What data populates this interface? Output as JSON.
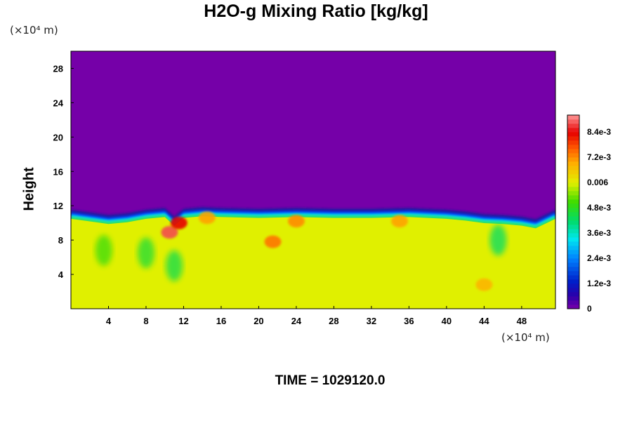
{
  "chart_data": {
    "type": "heatmap",
    "title": "H2O-g Mixing Ratio [kg/kg]",
    "xlabel": "",
    "ylabel": "Height",
    "x_unit": "(×10⁴ m)",
    "y_unit": "(×10⁴ m)",
    "xlim": [
      0,
      51.6
    ],
    "ylim": [
      0,
      30
    ],
    "x_ticks": [
      4,
      8,
      12,
      16,
      20,
      24,
      28,
      32,
      36,
      40,
      44,
      48
    ],
    "y_ticks": [
      4,
      8,
      12,
      16,
      20,
      24,
      28
    ],
    "colorbar": {
      "min": 0,
      "max": 0.0092,
      "tick_values": [
        0,
        0.0012,
        0.0024,
        0.0036,
        0.0048,
        0.006,
        0.0072,
        0.0084
      ],
      "tick_labels": [
        "0",
        "1.2e-3",
        "2.4e-3",
        "3.6e-3",
        "4.8e-3",
        "0.006",
        "7.2e-3",
        "8.4e-3"
      ]
    },
    "field": {
      "lower_layer_value": 0.0062,
      "upper_layer_value": 0,
      "interface_height_profile": {
        "x": [
          0,
          2,
          4,
          6,
          8,
          10,
          11,
          12,
          14,
          16,
          20,
          24,
          28,
          32,
          36,
          40,
          42,
          44,
          46,
          48,
          49.5,
          51.6
        ],
        "y": [
          10.8,
          10.5,
          10.2,
          10.4,
          10.8,
          11.0,
          10.0,
          10.9,
          11.1,
          11.0,
          10.9,
          11.0,
          10.9,
          10.9,
          11.0,
          10.8,
          10.6,
          10.3,
          10.2,
          10.0,
          9.7,
          10.8
        ]
      },
      "moist_patches": [
        {
          "x": 10.5,
          "y": 8.9,
          "value": 0.0088
        },
        {
          "x": 11.5,
          "y": 10.0,
          "value": 0.0084
        },
        {
          "x": 21.5,
          "y": 7.8,
          "value": 0.0074
        },
        {
          "x": 24.0,
          "y": 10.2,
          "value": 0.0072
        },
        {
          "x": 35.0,
          "y": 10.2,
          "value": 0.007
        },
        {
          "x": 44.0,
          "y": 2.8,
          "value": 0.0068
        },
        {
          "x": 14.5,
          "y": 10.6,
          "value": 0.007
        }
      ],
      "dry_patches": [
        {
          "x": 8.0,
          "y": 6.5,
          "value": 0.0046
        },
        {
          "x": 11.0,
          "y": 5.0,
          "value": 0.0044
        },
        {
          "x": 45.5,
          "y": 8.0,
          "value": 0.0042
        },
        {
          "x": 3.5,
          "y": 6.8,
          "value": 0.005
        }
      ]
    }
  },
  "footer": {
    "time_label": "TIME = 1029120.0"
  },
  "colors": {
    "upper_layer": "#7500a8",
    "lower_layer": "#e0f000",
    "boundary_dark": "#1a1aa0",
    "boundary_cyan": "#00e0f0",
    "moist": "#ff2020"
  }
}
